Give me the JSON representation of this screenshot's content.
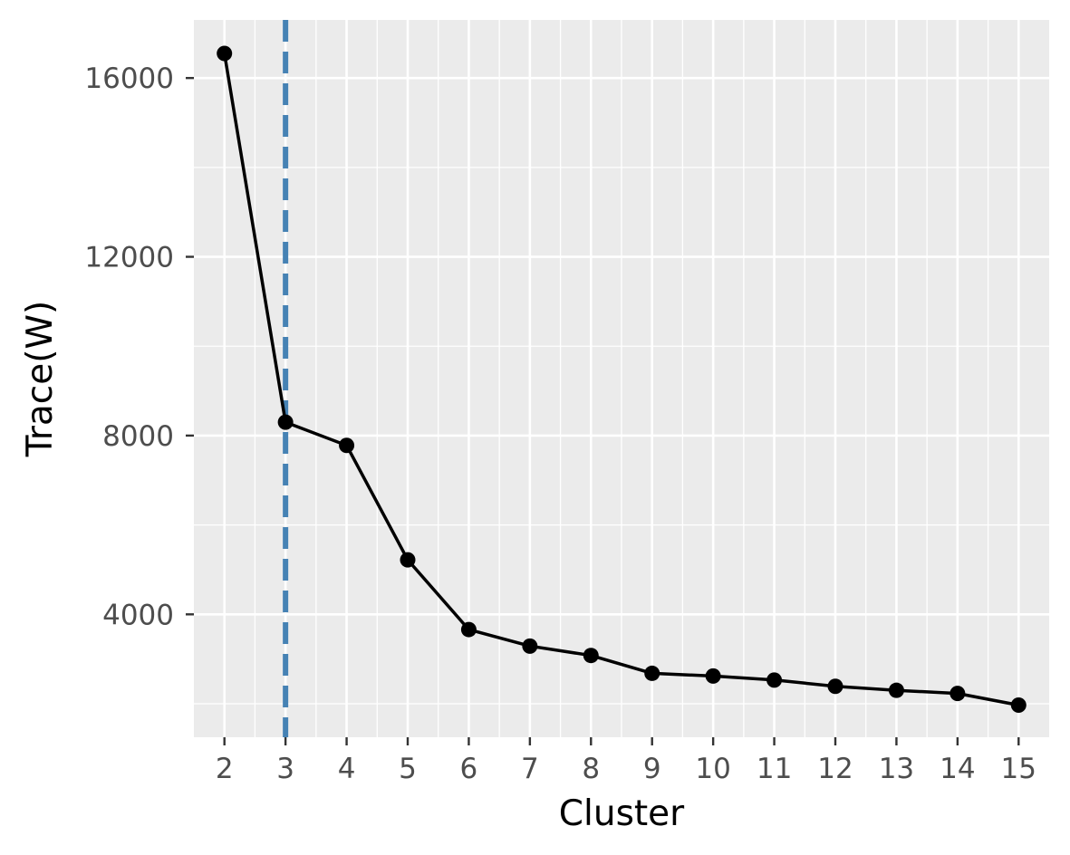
{
  "chart_data": {
    "type": "line",
    "title": "",
    "xlabel": "Cluster",
    "ylabel": "Trace(W)",
    "x": [
      2,
      3,
      4,
      5,
      6,
      7,
      8,
      9,
      10,
      11,
      12,
      13,
      14,
      15
    ],
    "series": [
      {
        "values": [
          16550,
          8300,
          7780,
          5220,
          3660,
          3290,
          3080,
          2680,
          2620,
          2530,
          2390,
          2300,
          2230,
          1970
        ]
      }
    ],
    "xticks": [
      "2",
      "3",
      "4",
      "5",
      "6",
      "7",
      "8",
      "9",
      "10",
      "11",
      "12",
      "13",
      "14",
      "15"
    ],
    "yticks": [
      4000,
      8000,
      12000,
      16000
    ],
    "xlim": [
      1.5,
      15.5
    ],
    "ylim": [
      1250,
      17300
    ],
    "vline": {
      "x": 3,
      "style": "dashed"
    },
    "grid": true,
    "colors": {
      "panel": "#ebebeb",
      "grid": "#ffffff",
      "line": "#000000",
      "point": "#000000",
      "vline": "#4682b4"
    }
  }
}
